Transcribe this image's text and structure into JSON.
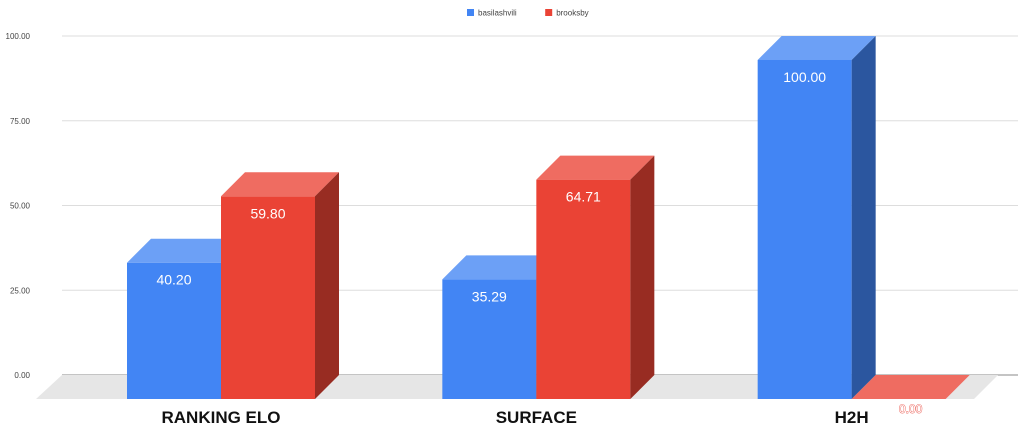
{
  "chart_data": {
    "type": "bar",
    "title": "",
    "xlabel": "",
    "ylabel": "",
    "categories": [
      "RANKING ELO",
      "SURFACE",
      "H2H"
    ],
    "series": [
      {
        "name": "basilashvili",
        "values": [
          40.2,
          35.29,
          100.0
        ],
        "color": "#4285f4"
      },
      {
        "name": "brooksby",
        "values": [
          59.8,
          64.71,
          0.0
        ],
        "color": "#ea4335"
      }
    ],
    "value_labels": [
      [
        "40.20",
        "35.29",
        "100.00"
      ],
      [
        "59.80",
        "64.71",
        "0.00"
      ]
    ],
    "ylim": [
      0,
      100
    ],
    "yticks": [
      "0.00",
      "25.00",
      "50.00",
      "75.00",
      "100.00"
    ],
    "grid": true,
    "legend_position": "top-center",
    "style": "3d"
  }
}
